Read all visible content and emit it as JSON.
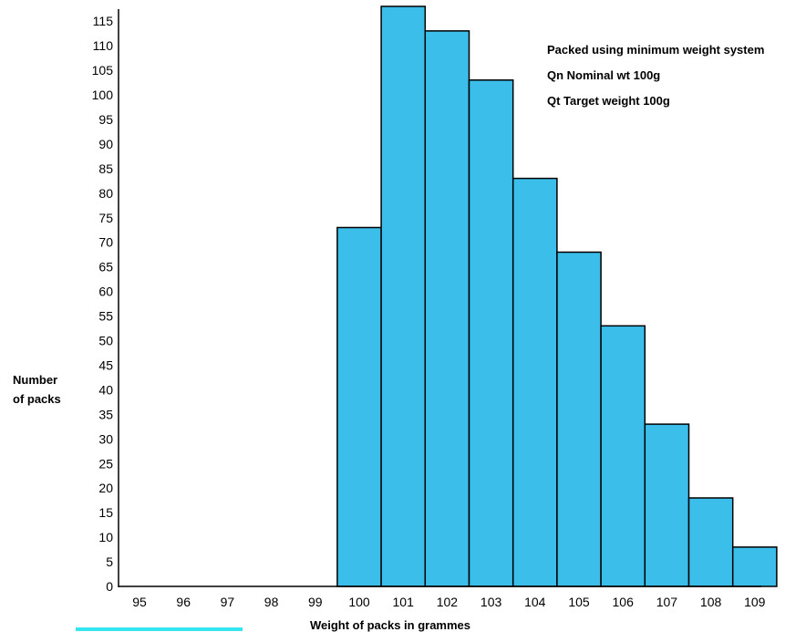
{
  "chart_data": {
    "type": "bar",
    "title": "",
    "xlabel": "Weight of packs in grammes",
    "ylabel": [
      "Number",
      "of packs"
    ],
    "categories": [
      "95",
      "96",
      "97",
      "98",
      "99",
      "100",
      "101",
      "102",
      "103",
      "104",
      "105",
      "106",
      "107",
      "108",
      "109"
    ],
    "values": [
      0,
      0,
      0,
      0,
      0,
      73,
      118,
      113,
      103,
      83,
      68,
      53,
      33,
      18,
      8
    ],
    "ylim": [
      0,
      118
    ],
    "yticks": [
      0,
      5,
      10,
      15,
      20,
      25,
      30,
      35,
      40,
      45,
      50,
      55,
      60,
      65,
      70,
      75,
      80,
      85,
      90,
      95,
      100,
      105,
      110,
      115
    ],
    "grid": false,
    "legend": "none",
    "annotations": [
      "Packed using minimum weight  system",
      "Qn Nominal wt 100g",
      "Qt Target weight 100g"
    ],
    "colors": {
      "bar_fill": "#3CBEEB",
      "bar_stroke": "#000000",
      "axis": "#000000",
      "highlight": "#35E6F0"
    }
  }
}
